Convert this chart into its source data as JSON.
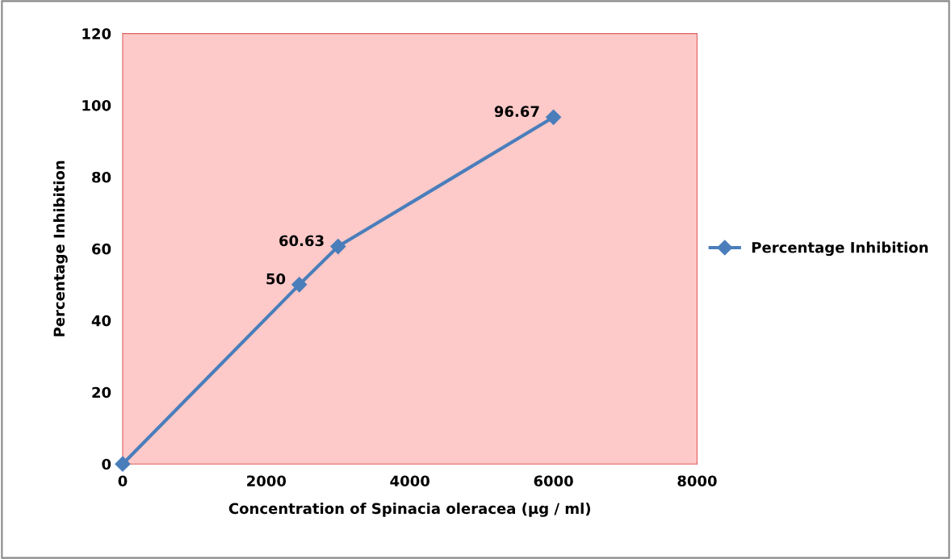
{
  "chart_data": {
    "type": "line",
    "xlabel": "Concentration of Spinacia oleracea (µg / ml)",
    "ylabel": "Percentage Inhibition",
    "x": [
      0,
      2460,
      3000,
      6000
    ],
    "series": [
      {
        "name": "Percentage Inhibition",
        "color": "#4a7ebb",
        "values": [
          0,
          50,
          60.63,
          96.67
        ],
        "value_labels": [
          null,
          "50",
          "60.63",
          "96.67"
        ]
      }
    ],
    "xlim": [
      0,
      8000
    ],
    "xticks": [
      0,
      2000,
      4000,
      6000,
      8000
    ],
    "ylim": [
      0,
      120
    ],
    "yticks": [
      0,
      20,
      40,
      60,
      80,
      100,
      120
    ],
    "grid": false,
    "legend": "right",
    "marker": "diamond",
    "line_style": "solid"
  }
}
